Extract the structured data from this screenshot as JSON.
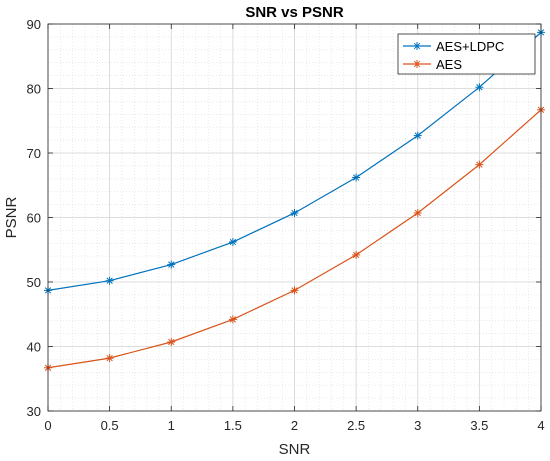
{
  "chart_data": {
    "type": "line",
    "title": "SNR vs PSNR",
    "xlabel": "SNR",
    "ylabel": "PSNR",
    "xlim": [
      0,
      4
    ],
    "ylim": [
      30,
      90
    ],
    "xticks": [
      0,
      0.5,
      1,
      1.5,
      2,
      2.5,
      3,
      3.5,
      4
    ],
    "xtick_labels": [
      "0",
      "0.5",
      "1",
      "1.5",
      "2",
      "2.5",
      "3",
      "3.5",
      "4"
    ],
    "yticks": [
      30,
      40,
      50,
      60,
      70,
      80,
      90
    ],
    "ytick_labels": [
      "30",
      "40",
      "50",
      "60",
      "70",
      "80",
      "90"
    ],
    "grid": true,
    "minor_grid": true,
    "legend_position": "top-right",
    "x": [
      0,
      0.5,
      1,
      1.5,
      2,
      2.5,
      3,
      3.5,
      4
    ],
    "series": [
      {
        "name": "AES+LDPC",
        "color": "#0072BD",
        "marker": "asterisk",
        "values": [
          48.7,
          50.2,
          52.7,
          56.2,
          60.7,
          66.2,
          72.7,
          80.2,
          88.7
        ]
      },
      {
        "name": "AES",
        "color": "#D95319",
        "marker": "asterisk",
        "values": [
          36.7,
          38.2,
          40.7,
          44.2,
          48.7,
          54.2,
          60.7,
          68.2,
          76.7
        ]
      }
    ]
  }
}
